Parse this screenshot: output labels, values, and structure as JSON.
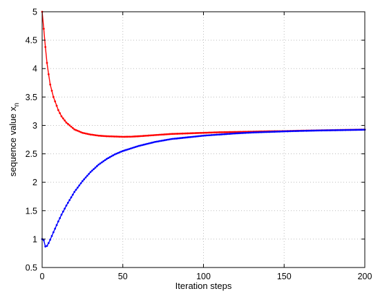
{
  "chart_data": {
    "type": "line",
    "title": "",
    "xlabel": "Iteration steps",
    "ylabel_main": "sequence value x",
    "ylabel_sub": "n",
    "xlim": [
      0,
      200
    ],
    "ylim": [
      0.5,
      5
    ],
    "xticks": [
      0,
      50,
      100,
      150,
      200
    ],
    "yticks": [
      0.5,
      1,
      1.5,
      2,
      2.5,
      3,
      3.5,
      4,
      4.5,
      5
    ],
    "grid": true,
    "series": [
      {
        "color": "#ff0000",
        "marker": "dot",
        "x": [
          0,
          1,
          2,
          3,
          4,
          5,
          7,
          10,
          12,
          15,
          20,
          25,
          30,
          35,
          40,
          45,
          50,
          55,
          60,
          70,
          80,
          90,
          100,
          110,
          120,
          130,
          140,
          150,
          160,
          170,
          180,
          190,
          200
        ],
        "y": [
          5.0,
          4.7,
          4.38,
          4.1,
          3.9,
          3.72,
          3.5,
          3.27,
          3.16,
          3.05,
          2.93,
          2.87,
          2.84,
          2.82,
          2.81,
          2.805,
          2.8,
          2.802,
          2.81,
          2.83,
          2.85,
          2.86,
          2.87,
          2.88,
          2.885,
          2.89,
          2.897,
          2.9,
          2.907,
          2.912,
          2.917,
          2.922,
          2.927
        ]
      },
      {
        "color": "#0000ff",
        "marker": "dot",
        "x": [
          0,
          1,
          2,
          3,
          4,
          5,
          7,
          10,
          12,
          15,
          20,
          25,
          30,
          35,
          40,
          45,
          50,
          60,
          70,
          80,
          90,
          100,
          110,
          120,
          130,
          140,
          150,
          160,
          170,
          180,
          190,
          200
        ],
        "y": [
          1.0,
          0.98,
          0.87,
          0.88,
          0.93,
          0.99,
          1.12,
          1.31,
          1.43,
          1.59,
          1.83,
          2.02,
          2.18,
          2.31,
          2.41,
          2.49,
          2.55,
          2.64,
          2.71,
          2.76,
          2.79,
          2.82,
          2.84,
          2.86,
          2.875,
          2.885,
          2.895,
          2.903,
          2.91,
          2.915,
          2.92,
          2.925
        ]
      }
    ]
  }
}
